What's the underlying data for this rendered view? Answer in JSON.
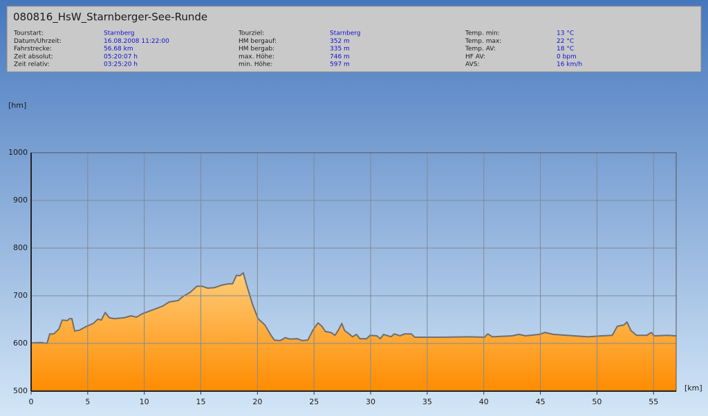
{
  "chart_data": {
    "type": "area",
    "title": "080816_HsW_Starnberger-See-Runde",
    "info": [
      [
        [
          "Tourstart:",
          "Starnberg"
        ],
        [
          "Datum/Uhrzeit:",
          "16.08.2008 11:22:00"
        ],
        [
          "Fahrstrecke:",
          "56.68 km"
        ],
        [
          "Zeit absolut:",
          "05:20:07 h"
        ],
        [
          "Zeit relativ:",
          "03:25:20 h"
        ]
      ],
      [
        [
          "Tourziel:",
          "Starnberg"
        ],
        [
          "HM bergauf:",
          "352 m"
        ],
        [
          "HM bergab:",
          "335 m"
        ],
        [
          "max. Höhe:",
          "746 m"
        ],
        [
          "min. Höhe:",
          "597 m"
        ]
      ],
      [
        [
          "Temp. min:",
          "13 °C"
        ],
        [
          "Temp. max:",
          "22 °C"
        ],
        [
          "Temp. AV:",
          "18 °C"
        ],
        [
          "HF AV:",
          "0 bpm"
        ],
        [
          "AVS:",
          "16 km/h"
        ]
      ]
    ],
    "y_label": "[hm]",
    "x_label": "[km]",
    "x": [
      0,
      0.9,
      1.4,
      1.65,
      2.0,
      2.45,
      2.75,
      3.2,
      3.4,
      3.6,
      3.85,
      4.3,
      4.9,
      5.5,
      5.9,
      6.2,
      6.55,
      6.9,
      7.35,
      8.25,
      8.85,
      9.3,
      9.8,
      10.7,
      11.6,
      12.2,
      13.0,
      13.45,
      14.05,
      14.65,
      15.1,
      15.6,
      16.2,
      16.8,
      17.4,
      17.8,
      18.15,
      18.45,
      18.75,
      19.0,
      19.55,
      20.05,
      20.65,
      21.2,
      21.5,
      22.0,
      22.45,
      22.9,
      23.5,
      23.95,
      24.45,
      24.9,
      25.35,
      25.7,
      26.0,
      26.5,
      26.85,
      27.2,
      27.45,
      27.7,
      28.1,
      28.4,
      28.75,
      29.05,
      29.65,
      29.95,
      30.55,
      30.85,
      31.15,
      31.8,
      32.1,
      32.6,
      33.0,
      33.6,
      33.9,
      36.35,
      38.8,
      40.05,
      40.35,
      40.75,
      42.5,
      43.1,
      43.7,
      44.9,
      45.4,
      46.15,
      48.0,
      49.2,
      50.4,
      51.35,
      51.8,
      52.4,
      52.65,
      53.0,
      53.5,
      54.4,
      54.8,
      55.05,
      56.2,
      57.0
    ],
    "values": [
      601,
      602,
      600,
      620,
      620,
      630,
      649,
      648,
      652,
      652,
      626,
      628,
      636,
      642,
      651,
      649,
      665,
      654,
      652,
      654,
      658,
      655,
      662,
      670,
      678,
      687,
      690,
      699,
      707,
      720,
      720,
      716,
      717,
      722,
      725,
      725,
      743,
      742,
      748,
      726,
      683,
      652,
      639,
      617,
      607,
      606,
      612,
      609,
      610,
      606,
      607,
      628,
      643,
      636,
      625,
      623,
      617,
      630,
      642,
      627,
      620,
      614,
      619,
      610,
      610,
      617,
      616,
      610,
      619,
      614,
      620,
      616,
      620,
      620,
      613,
      613,
      614,
      613,
      620,
      614,
      616,
      619,
      616,
      619,
      623,
      619,
      616,
      614,
      616,
      617,
      636,
      639,
      645,
      627,
      617,
      617,
      623,
      616,
      617,
      616
    ],
    "color": "#ff9a10",
    "line_color": "#6e6e6e",
    "xlim": [
      0,
      57
    ],
    "ylim": [
      500,
      1000
    ],
    "xticks": [
      0,
      5,
      10,
      15,
      20,
      25,
      30,
      35,
      40,
      45,
      50,
      55
    ],
    "yticks": [
      500,
      600,
      700,
      800,
      900,
      1000
    ],
    "grid": true
  }
}
